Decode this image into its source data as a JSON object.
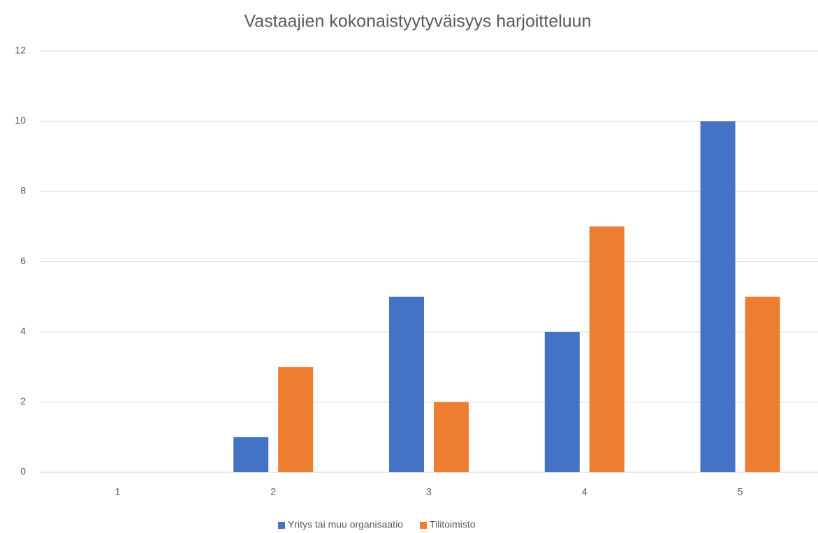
{
  "chart_data": {
    "type": "bar",
    "title": "Vastaajien kokonaistyytyväisyys harjoitteluun",
    "categories": [
      "1",
      "2",
      "3",
      "4",
      "5"
    ],
    "series": [
      {
        "name": "Yritys tai muu organisaatio",
        "color": "#4472c4",
        "values": [
          0,
          1,
          5,
          4,
          10
        ]
      },
      {
        "name": "Tilitoimisto",
        "color": "#ed7d31",
        "values": [
          0,
          3,
          2,
          7,
          5
        ]
      }
    ],
    "ylim": [
      0,
      12
    ],
    "yticks": [
      0,
      2,
      4,
      6,
      8,
      10,
      12
    ],
    "grid": true,
    "legend": "bottom"
  }
}
